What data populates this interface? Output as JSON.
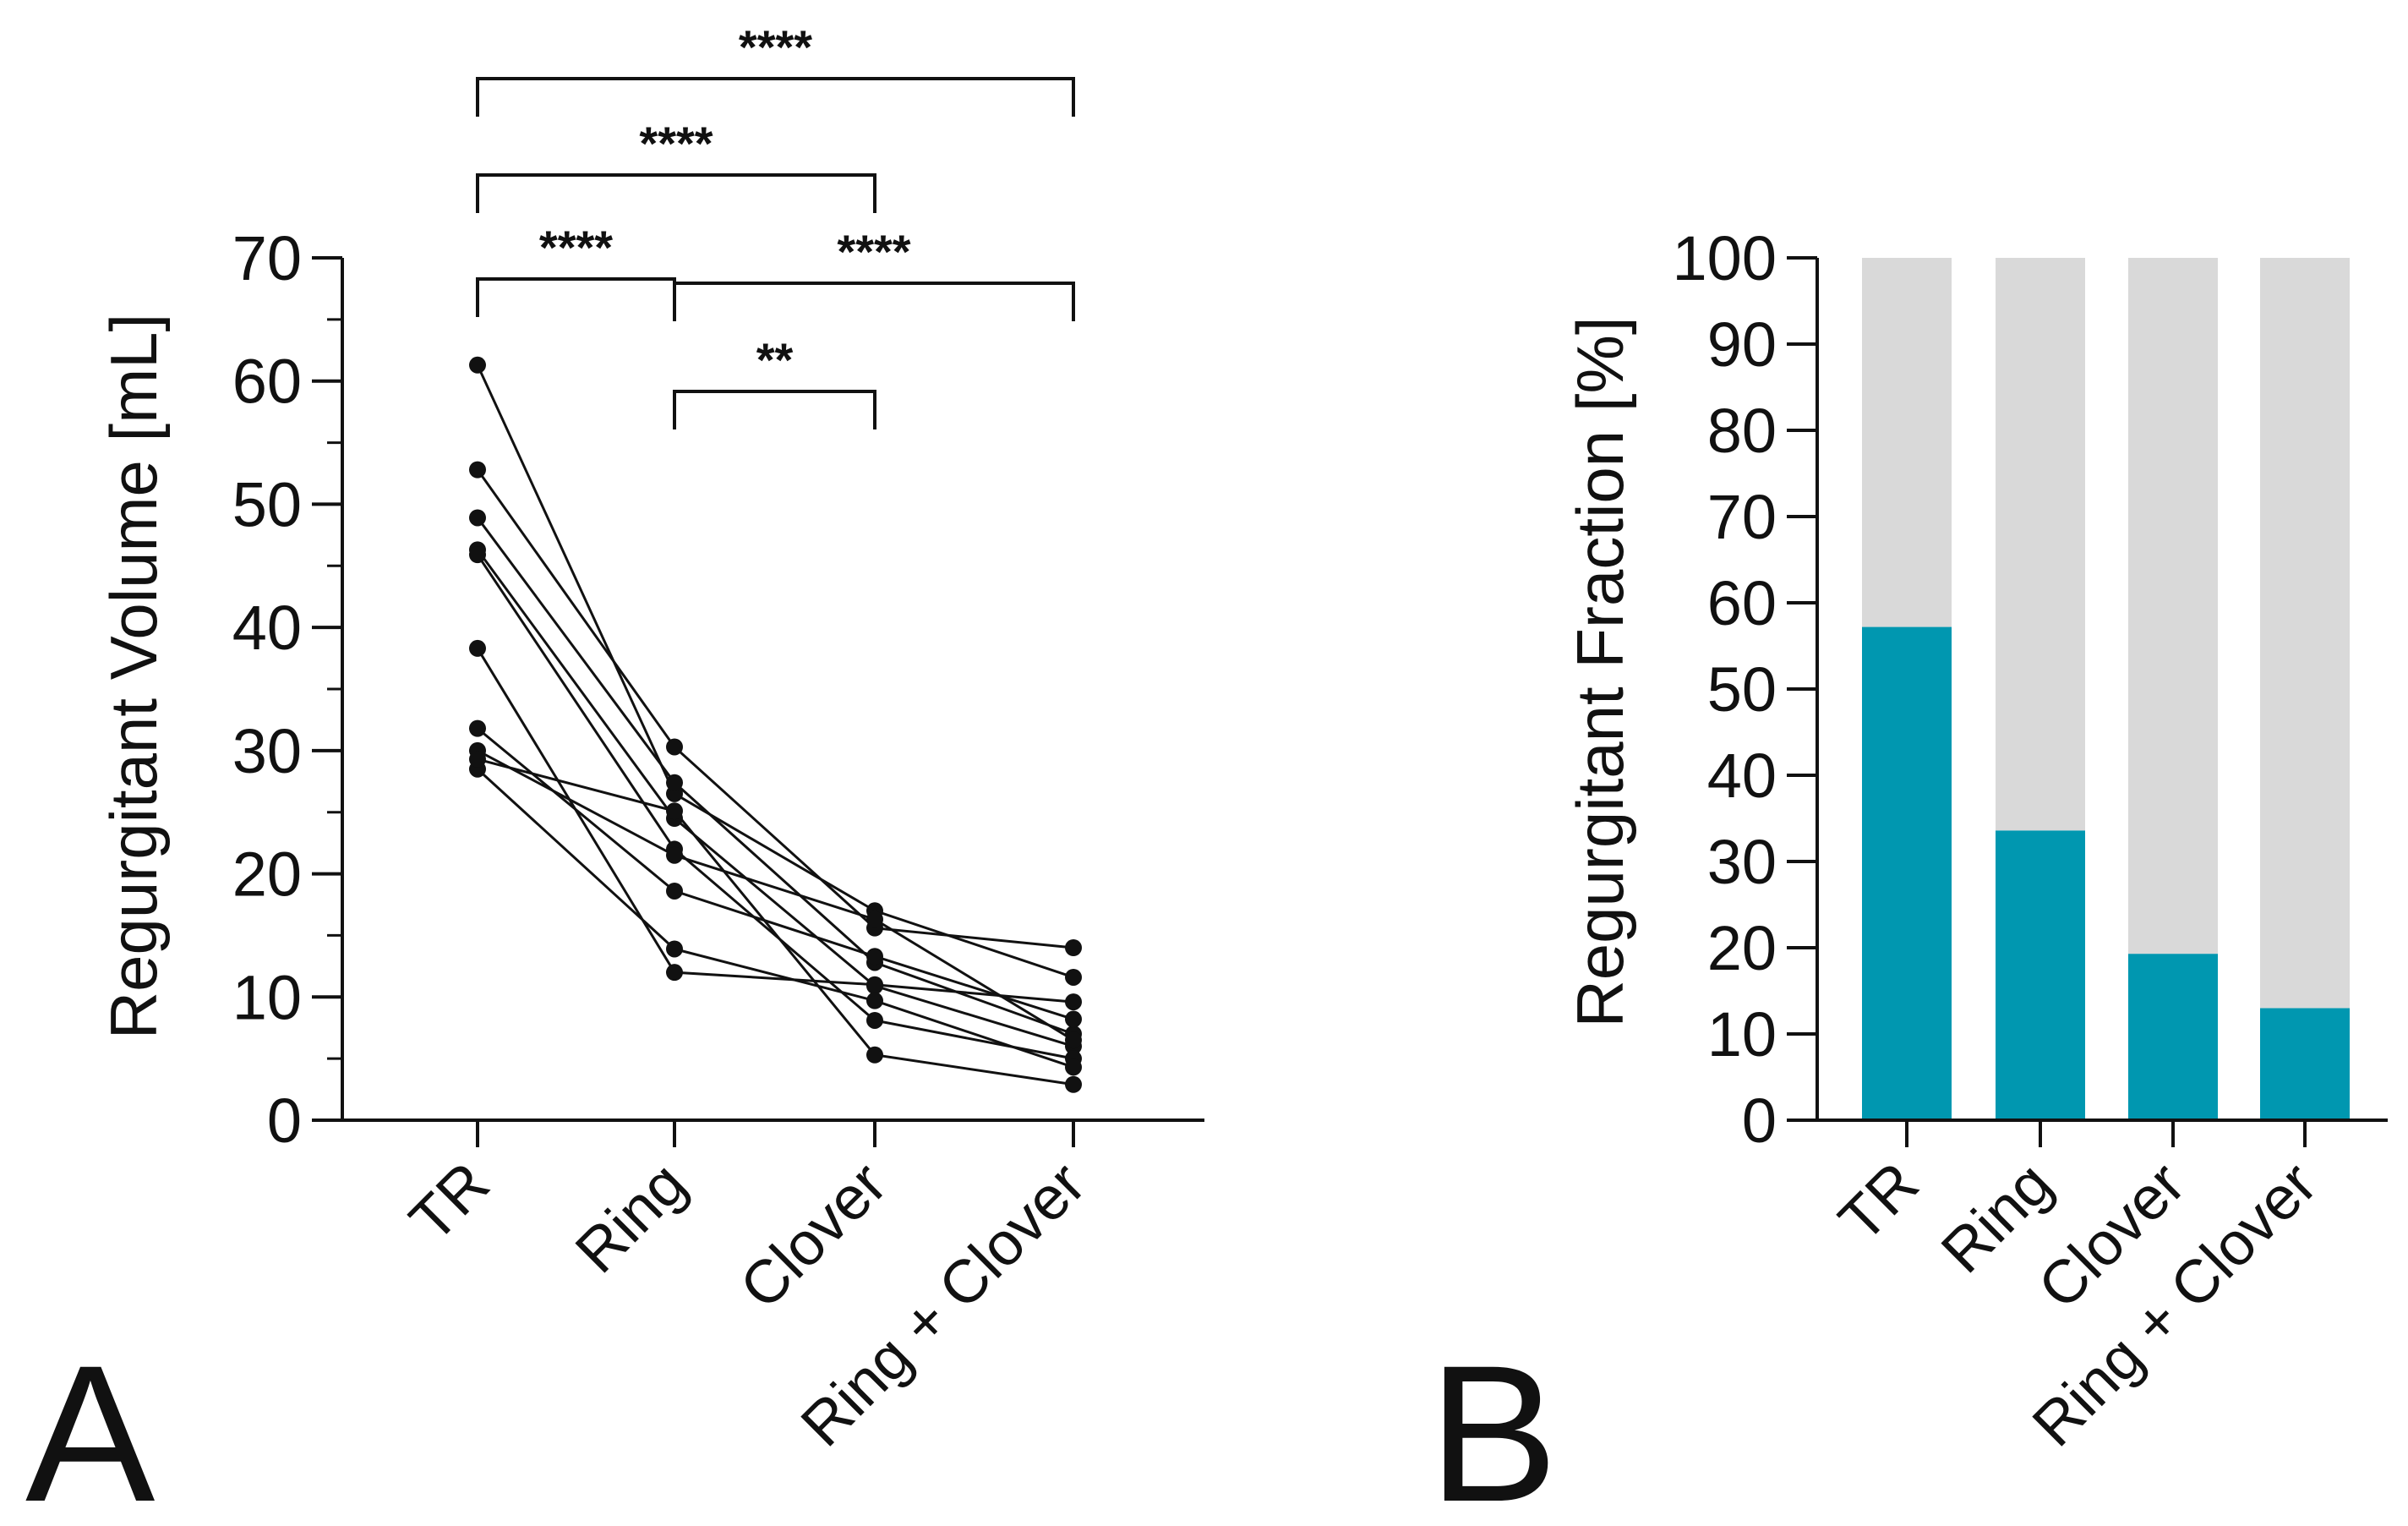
{
  "chart_data": [
    {
      "panel_label": "A",
      "type": "line",
      "ylabel": "Regurgitant Volume [mL]",
      "ylim": [
        0,
        70
      ],
      "yticks": [
        0,
        10,
        20,
        30,
        40,
        50,
        60,
        70
      ],
      "categories": [
        "TR",
        "Ring",
        "Clover",
        "Ring + Clover"
      ],
      "series": [
        {
          "values": [
            61.3,
            26.5,
            17.0,
            11.6
          ]
        },
        {
          "values": [
            52.8,
            30.3,
            15.6,
            14.0
          ]
        },
        {
          "values": [
            48.9,
            27.4,
            12.8,
            7.0
          ]
        },
        {
          "values": [
            46.3,
            24.5,
            10.9,
            6.0
          ]
        },
        {
          "values": [
            45.9,
            22.0,
            8.1,
            5.0
          ]
        },
        {
          "values": [
            38.3,
            12.0,
            11.0,
            9.6
          ]
        },
        {
          "values": [
            31.8,
            18.6,
            13.3,
            8.2
          ]
        },
        {
          "values": [
            30.0,
            21.5,
            16.3,
            6.5
          ]
        },
        {
          "values": [
            28.5,
            13.9,
            9.7,
            4.3
          ]
        },
        {
          "values": [
            29.3,
            25.1,
            5.3,
            2.9
          ]
        }
      ],
      "comparisons": [
        {
          "from": "TR",
          "to": "Ring",
          "label": "****"
        },
        {
          "from": "TR",
          "to": "Clover",
          "label": "****"
        },
        {
          "from": "TR",
          "to": "Ring + Clover",
          "label": "****"
        },
        {
          "from": "Ring",
          "to": "Clover",
          "label": "**"
        },
        {
          "from": "Ring",
          "to": "Ring + Clover",
          "label": "****"
        }
      ],
      "grid": false
    },
    {
      "panel_label": "B",
      "type": "bar",
      "stacked": true,
      "ylabel": "Regurgitant Fraction [%]",
      "ylim": [
        0,
        100
      ],
      "yticks": [
        0,
        10,
        20,
        30,
        40,
        50,
        60,
        70,
        80,
        90,
        100
      ],
      "categories": [
        "TR",
        "Ring",
        "Clover",
        "Ring + Clover"
      ],
      "series": [
        {
          "values": [
            57.2,
            33.6,
            19.3,
            13.0
          ],
          "color": "#0097b0"
        },
        {
          "values": [
            42.8,
            66.4,
            80.7,
            87.0
          ],
          "color": "#d9d9d9"
        }
      ],
      "grid": false
    }
  ]
}
